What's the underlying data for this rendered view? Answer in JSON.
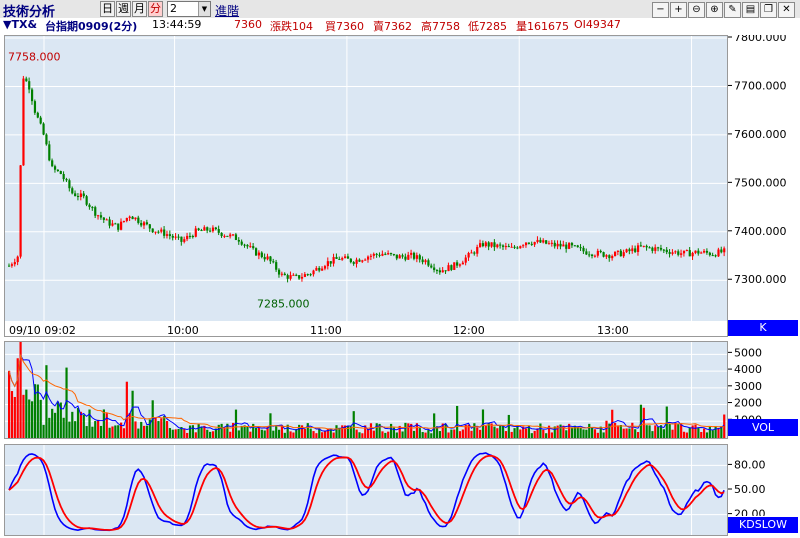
{
  "toolbar": {
    "title": "技術分析",
    "periods": [
      "日",
      "週",
      "月",
      "分"
    ],
    "active_period": "分",
    "interval_value": "2",
    "advanced_label": "進階",
    "tools": [
      "minus-icon",
      "plus-icon",
      "zoom-out-icon",
      "zoom-in-icon",
      "edit-icon",
      "print-icon",
      "restore-icon",
      "close-icon"
    ]
  },
  "quote": {
    "symbol": "▼TX&",
    "name": "台指期0909(2分)",
    "time": "13:44:59",
    "last": "7360",
    "change_label": "漲跌",
    "change": "104",
    "bid_label": "買",
    "bid": "7360",
    "ask_label": "賣",
    "ask": "7362",
    "high_label": "高",
    "high": "7758",
    "low_label": "低",
    "low": "7285",
    "volume_label": "量",
    "volume": "161675",
    "oi_label": "OI",
    "oi": "49347"
  },
  "panels": {
    "price_tag": "K",
    "volume_tag": "VOL",
    "kd_tag": "KDSLOW"
  },
  "colors": {
    "up": "#ff0000",
    "down": "#008000",
    "tag_bg": "#0000ff",
    "panel_bg": "#dbe7f3",
    "k_line": "#0000ff",
    "d_line": "#ff0000"
  },
  "chart_data": {
    "type": "candlestick",
    "price_axis": {
      "ticks": [
        "7800.000",
        "7700.000",
        "7600.000",
        "7500.000",
        "7400.000",
        "7300.000"
      ],
      "ylim": [
        7220,
        7800
      ]
    },
    "time_axis": {
      "ticks": [
        "09/10 09:02",
        "10:00",
        "11:00",
        "12:00",
        "13:00"
      ]
    },
    "annotations": {
      "high": "7758.000",
      "low": "7285.000"
    },
    "price_path": [
      [
        0,
        7330
      ],
      [
        3,
        7350
      ],
      [
        5,
        7720
      ],
      [
        7,
        7700
      ],
      [
        9,
        7650
      ],
      [
        12,
        7600
      ],
      [
        15,
        7530
      ],
      [
        18,
        7520
      ],
      [
        22,
        7480
      ],
      [
        26,
        7470
      ],
      [
        30,
        7440
      ],
      [
        34,
        7420
      ],
      [
        38,
        7410
      ],
      [
        42,
        7435
      ],
      [
        46,
        7420
      ],
      [
        50,
        7405
      ],
      [
        55,
        7395
      ],
      [
        60,
        7380
      ],
      [
        65,
        7400
      ],
      [
        70,
        7405
      ],
      [
        75,
        7395
      ],
      [
        80,
        7385
      ],
      [
        85,
        7360
      ],
      [
        90,
        7345
      ],
      [
        95,
        7310
      ],
      [
        100,
        7305
      ],
      [
        105,
        7315
      ],
      [
        110,
        7335
      ],
      [
        115,
        7345
      ],
      [
        120,
        7340
      ],
      [
        125,
        7350
      ],
      [
        130,
        7355
      ],
      [
        135,
        7348
      ],
      [
        140,
        7350
      ],
      [
        145,
        7340
      ],
      [
        150,
        7320
      ],
      [
        155,
        7330
      ],
      [
        160,
        7350
      ],
      [
        165,
        7375
      ],
      [
        170,
        7370
      ],
      [
        175,
        7365
      ],
      [
        180,
        7380
      ],
      [
        185,
        7378
      ],
      [
        190,
        7372
      ],
      [
        195,
        7370
      ],
      [
        200,
        7360
      ],
      [
        205,
        7355
      ],
      [
        210,
        7352
      ],
      [
        215,
        7358
      ],
      [
        220,
        7368
      ],
      [
        225,
        7365
      ],
      [
        230,
        7360
      ],
      [
        235,
        7355
      ],
      [
        240,
        7358
      ],
      [
        245,
        7355
      ],
      [
        250,
        7360
      ]
    ],
    "volume_axis": {
      "ticks": [
        "5000",
        "4000",
        "3000",
        "2000",
        "1000"
      ],
      "ylim": [
        0,
        5500
      ]
    },
    "kd_axis": {
      "ticks": [
        "80.00",
        "50.00",
        "20.00"
      ],
      "ylim": [
        0,
        100
      ]
    }
  }
}
